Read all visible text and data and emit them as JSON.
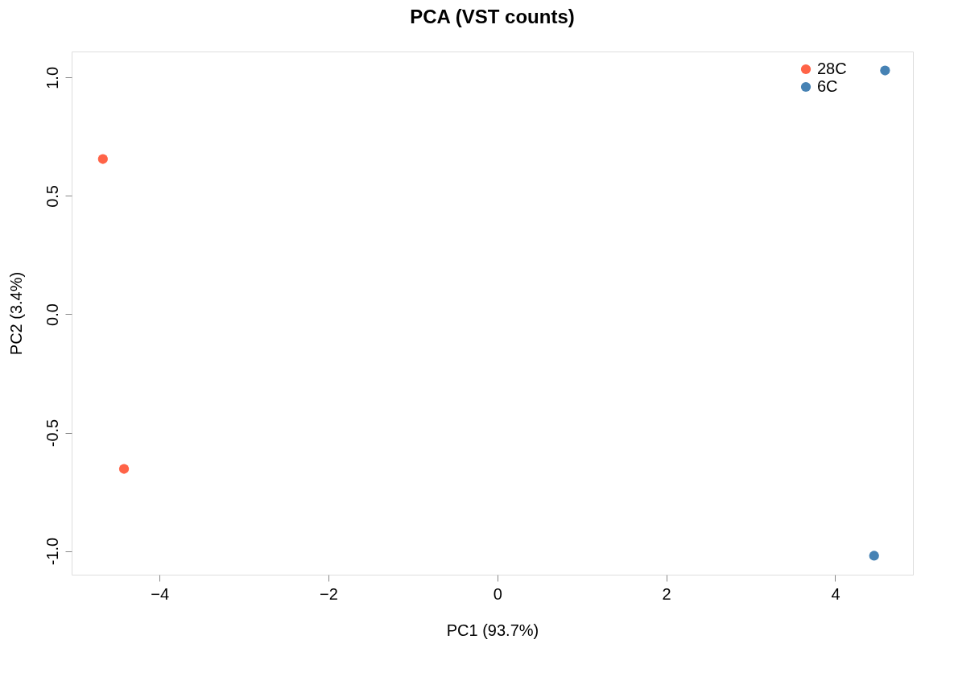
{
  "chart_data": {
    "type": "scatter",
    "title": "PCA (VST counts)",
    "xlabel": "PC1 (93.7%)",
    "ylabel": "PC2 (3.4%)",
    "series": [
      {
        "name": "28C",
        "color": "#ff6347",
        "x": [
          -4.67,
          -4.42
        ],
        "values": [
          0.656,
          -0.653
        ]
      },
      {
        "name": "6C",
        "color": "#4682b4",
        "x": [
          4.59,
          4.46
        ],
        "values": [
          1.03,
          -1.02
        ]
      }
    ],
    "xlim": [
      -5.04,
      4.92
    ],
    "ylim": [
      -1.1,
      1.11
    ],
    "xticks": [
      -4,
      -2,
      0,
      2,
      4
    ],
    "yticks": [
      {
        "value": -1,
        "label": "-1.0"
      },
      -0.5,
      {
        "value": 0,
        "label": "0.0"
      },
      0.5,
      {
        "value": 1,
        "label": "1.0"
      }
    ],
    "grid": false,
    "legend": "top right",
    "marker": "circle"
  }
}
